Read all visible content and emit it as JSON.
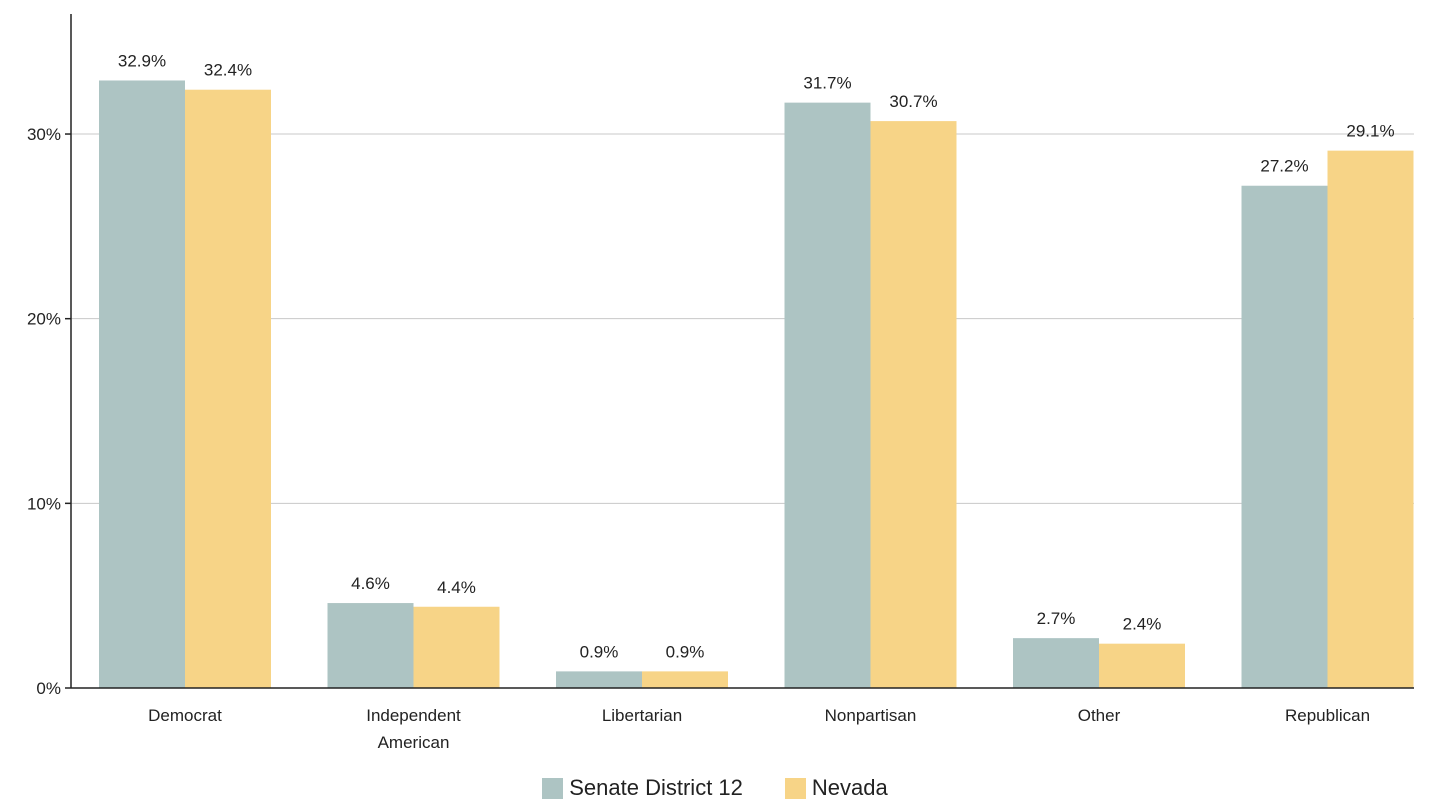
{
  "colors": {
    "senate_district_12": "#adc4c3",
    "nevada": "#f7d487"
  },
  "chart_data": {
    "type": "bar",
    "categories": [
      "Democrat",
      "Independent American",
      "Libertarian",
      "Nonpartisan",
      "Other",
      "Republican"
    ],
    "category_lines": [
      [
        "Democrat"
      ],
      [
        "Independent",
        "American"
      ],
      [
        "Libertarian"
      ],
      [
        "Nonpartisan"
      ],
      [
        "Other"
      ],
      [
        "Republican"
      ]
    ],
    "series": [
      {
        "name": "Senate District 12",
        "values": [
          32.9,
          4.6,
          0.9,
          31.7,
          2.7,
          27.2
        ],
        "labels": [
          "32.9%",
          "4.6%",
          "0.9%",
          "31.7%",
          "2.7%",
          "27.2%"
        ]
      },
      {
        "name": "Nevada",
        "values": [
          32.4,
          4.4,
          0.9,
          30.7,
          2.4,
          29.1
        ],
        "labels": [
          "32.4%",
          "4.4%",
          "0.9%",
          "30.7%",
          "2.4%",
          "29.1%"
        ]
      }
    ],
    "y_ticks": [
      0,
      10,
      20,
      30
    ],
    "y_tick_labels": [
      "0%",
      "10%",
      "20%",
      "30%"
    ],
    "ylim": [
      0,
      36.5
    ],
    "grid": true,
    "legend_position": "bottom-center",
    "title": "",
    "xlabel": "",
    "ylabel": ""
  }
}
